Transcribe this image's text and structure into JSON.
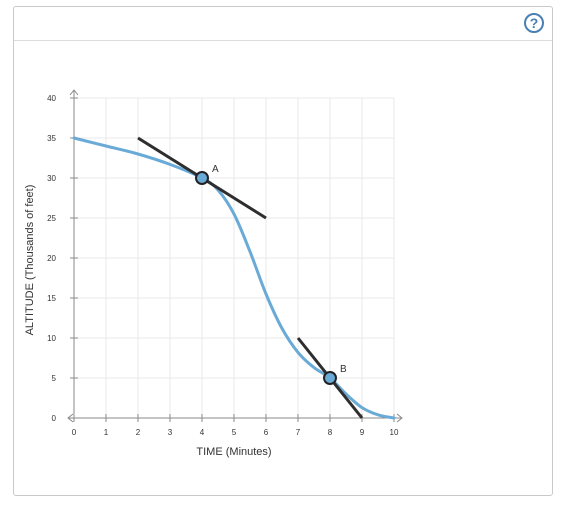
{
  "help_label": "?",
  "colors": {
    "curve": "#6aaad7",
    "tangent": "#2e2e2e",
    "point_fill": "#6aaad7",
    "grid": "#e9e9e9",
    "axis": "#8a8a8a"
  },
  "chart_data": {
    "type": "line",
    "xlabel": "TIME (Minutes)",
    "ylabel": "ALTITUDE (Thousands of feet)",
    "xlim": [
      0,
      10
    ],
    "ylim": [
      0,
      40
    ],
    "x_ticks": [
      0,
      1,
      2,
      3,
      4,
      5,
      6,
      7,
      8,
      9,
      10
    ],
    "y_ticks": [
      0,
      5,
      10,
      15,
      20,
      25,
      30,
      35,
      40
    ],
    "grid": true,
    "series": [
      {
        "x": [
          0,
          1,
          2,
          3,
          4,
          4.5,
          5,
          5.5,
          6,
          6.5,
          7,
          7.5,
          8,
          8.5,
          9,
          9.5,
          10
        ],
        "y": [
          35,
          34,
          33,
          31.7,
          30,
          28.5,
          25.5,
          20.8,
          15.5,
          11.2,
          8.2,
          6.3,
          5,
          3,
          1.3,
          0.4,
          0
        ]
      }
    ],
    "points": [
      {
        "label": "A",
        "x": 4,
        "y": 30
      },
      {
        "label": "B",
        "x": 8,
        "y": 5
      }
    ],
    "tangent_lines": [
      {
        "point": "A",
        "x1": 2,
        "y1": 35,
        "x2": 6,
        "y2": 25
      },
      {
        "point": "B",
        "x1": 7,
        "y1": 10,
        "x2": 9,
        "y2": 0
      }
    ]
  }
}
